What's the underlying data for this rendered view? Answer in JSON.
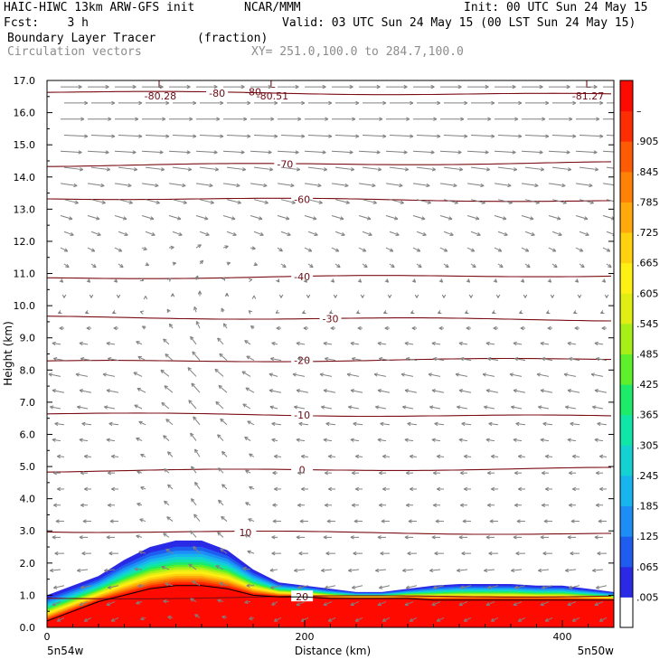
{
  "header": {
    "line1_left": "HAIC-HIWC 13km ARW-GFS init",
    "line1_mid": "NCAR/MMM",
    "line1_right": "Init: 00 UTC Sun 24 May 15",
    "line2_left": "Fcst:    3 h",
    "line2_right": "Valid: 03 UTC Sun 24 May 15 (00 LST Sun 24 May 15)",
    "field_name": "Boundary Layer Tracer",
    "field_units": "(fraction)",
    "vector_name": "Circulation vectors",
    "xy_range": "XY= 251.0,100.0 to 284.7,100.0"
  },
  "chart_data": {
    "type": "heatmap",
    "xlabel": "Distance (km)",
    "ylabel": "Height (km)",
    "xlim": [
      0,
      440
    ],
    "ylim": [
      0,
      17
    ],
    "x_ticks": [
      "0",
      "200",
      "400"
    ],
    "y_ticks": [
      "0.0",
      "1.0",
      "2.0",
      "3.0",
      "4.0",
      "5.0",
      "6.0",
      "7.0",
      "8.0",
      "9.0",
      "10.0",
      "11.0",
      "12.0",
      "13.0",
      "14.0",
      "15.0",
      "16.0",
      "17.0"
    ],
    "x_end_labels": {
      "left": "5n54w",
      "right": "5n50w"
    },
    "colorbar": {
      "labels": [
        ".005",
        ".065",
        ".125",
        ".185",
        ".245",
        ".305",
        ".365",
        ".425",
        ".485",
        ".545",
        ".605",
        ".665",
        ".725",
        ".785",
        ".845",
        ".905",
        "–"
      ],
      "colors": [
        "#ffffff",
        "#2a2ae6",
        "#1f5df0",
        "#1d8ef5",
        "#17b4ee",
        "#14d2d2",
        "#10e6a8",
        "#1cec6a",
        "#5ef02a",
        "#a6f018",
        "#e0ee14",
        "#fff014",
        "#ffd20f",
        "#ffaa0a",
        "#ff8206",
        "#ff5a04",
        "#ff2d02",
        "#ff0a00"
      ]
    },
    "tracer_surface": {
      "x_km": [
        0,
        20,
        40,
        60,
        80,
        100,
        120,
        140,
        160,
        180,
        200,
        220,
        240,
        260,
        280,
        300,
        320,
        340,
        360,
        380,
        400,
        420,
        440
      ],
      "top_height_km": [
        1.0,
        1.3,
        1.6,
        2.1,
        2.5,
        2.7,
        2.7,
        2.4,
        1.8,
        1.4,
        1.3,
        1.2,
        1.1,
        1.1,
        1.2,
        1.3,
        1.35,
        1.35,
        1.35,
        1.3,
        1.3,
        1.2,
        1.1
      ],
      "red_core_top_km": [
        0.2,
        0.5,
        0.8,
        1.0,
        1.2,
        1.3,
        1.3,
        1.2,
        1.0,
        0.95,
        0.95,
        0.9,
        0.9,
        0.9,
        0.9,
        0.85,
        0.85,
        0.85,
        0.85,
        0.85,
        0.85,
        0.85,
        0.85
      ]
    },
    "temperature_contours": [
      {
        "label": "20",
        "height_km": 0.95
      },
      {
        "label": "10",
        "height_km": 2.95
      },
      {
        "label": "0",
        "height_km": 4.9
      },
      {
        "label": "-10",
        "height_km": 6.6
      },
      {
        "label": "-20",
        "height_km": 8.3
      },
      {
        "label": "-30",
        "height_km": 9.6
      },
      {
        "label": "-40",
        "height_km": 10.9
      },
      {
        "label": "-60",
        "height_km": 13.3
      },
      {
        "label": "-70",
        "height_km": 14.4
      },
      {
        "label": "-80",
        "height_km": 16.6
      }
    ],
    "contour_mins": [
      {
        "label": "-80.28",
        "x_km": 88,
        "height_km": 16.6
      },
      {
        "label": "-80.51",
        "x_km": 175,
        "height_km": 16.6
      },
      {
        "label": "-81.27",
        "x_km": 420,
        "height_km": 16.6
      }
    ],
    "contour_label_min_marker": "L",
    "vector_rows": [
      {
        "height_km": 16.8,
        "u": 0.9,
        "v": 0.0
      },
      {
        "height_km": 16.3,
        "u": 1.0,
        "v": 0.0
      },
      {
        "height_km": 15.8,
        "u": 1.0,
        "v": 0.0
      },
      {
        "height_km": 15.3,
        "u": 1.0,
        "v": -0.05
      },
      {
        "height_km": 14.8,
        "u": 0.9,
        "v": -0.05
      },
      {
        "height_km": 14.3,
        "u": 0.8,
        "v": -0.1
      },
      {
        "height_km": 13.8,
        "u": 0.7,
        "v": -0.1
      },
      {
        "height_km": 13.3,
        "u": 0.6,
        "v": -0.15
      },
      {
        "height_km": 12.8,
        "u": 0.5,
        "v": -0.15
      },
      {
        "height_km": 12.3,
        "u": 0.4,
        "v": -0.15
      },
      {
        "height_km": 11.8,
        "u": 0.3,
        "v": -0.15
      },
      {
        "height_km": 11.3,
        "u": 0.2,
        "v": -0.15
      },
      {
        "height_km": 10.8,
        "u": 0.1,
        "v": -0.1
      },
      {
        "height_km": 10.3,
        "u": 0.0,
        "v": -0.08
      },
      {
        "height_km": 9.8,
        "u": -0.1,
        "v": -0.05
      },
      {
        "height_km": 9.3,
        "u": -0.2,
        "v": 0.0
      },
      {
        "height_km": 8.8,
        "u": -0.35,
        "v": 0.05
      },
      {
        "height_km": 8.3,
        "u": -0.45,
        "v": 0.08
      },
      {
        "height_km": 7.8,
        "u": -0.5,
        "v": 0.1
      },
      {
        "height_km": 7.3,
        "u": -0.5,
        "v": 0.1
      },
      {
        "height_km": 6.8,
        "u": -0.45,
        "v": 0.08
      },
      {
        "height_km": 6.3,
        "u": -0.4,
        "v": 0.05
      },
      {
        "height_km": 5.8,
        "u": -0.35,
        "v": 0.05
      },
      {
        "height_km": 5.3,
        "u": -0.3,
        "v": 0.03
      },
      {
        "height_km": 4.8,
        "u": -0.3,
        "v": 0.0
      },
      {
        "height_km": 4.3,
        "u": -0.3,
        "v": 0.0
      },
      {
        "height_km": 3.8,
        "u": -0.3,
        "v": 0.0
      },
      {
        "height_km": 3.3,
        "u": -0.35,
        "v": 0.0
      },
      {
        "height_km": 2.8,
        "u": -0.35,
        "v": 0.0
      },
      {
        "height_km": 2.3,
        "u": -0.4,
        "v": 0.0
      },
      {
        "height_km": 1.8,
        "u": -0.45,
        "v": -0.05
      },
      {
        "height_km": 1.3,
        "u": -0.45,
        "v": -0.1
      },
      {
        "height_km": 0.8,
        "u": -0.35,
        "v": -0.15
      },
      {
        "height_km": 0.3,
        "u": -0.3,
        "v": -0.15
      }
    ],
    "colors": {
      "contour_line": "#7a0e14",
      "vector": "#808080",
      "surface_line": "#000000"
    }
  }
}
